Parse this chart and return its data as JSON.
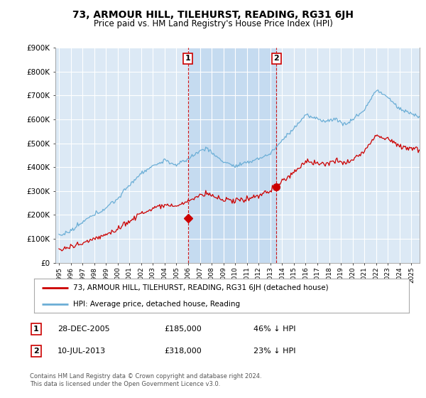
{
  "title": "73, ARMOUR HILL, TILEHURST, READING, RG31 6JH",
  "subtitle": "Price paid vs. HM Land Registry's House Price Index (HPI)",
  "ylim": [
    0,
    900000
  ],
  "yticks": [
    0,
    100000,
    200000,
    300000,
    400000,
    500000,
    600000,
    700000,
    800000,
    900000
  ],
  "hpi_color": "#6baed6",
  "price_color": "#cc0000",
  "marker1_value": 185000,
  "marker2_value": 318000,
  "sale1_year": 2005.98,
  "sale2_year": 2013.52,
  "legend_line1": "73, ARMOUR HILL, TILEHURST, READING, RG31 6JH (detached house)",
  "legend_line2": "HPI: Average price, detached house, Reading",
  "footer": "Contains HM Land Registry data © Crown copyright and database right 2024.\nThis data is licensed under the Open Government Licence v3.0.",
  "bg_color": "#ffffff",
  "plot_bg_color": "#dce9f5",
  "shade_color": "#c5dbf0",
  "grid_color": "#ffffff",
  "vline_color": "#cc0000"
}
